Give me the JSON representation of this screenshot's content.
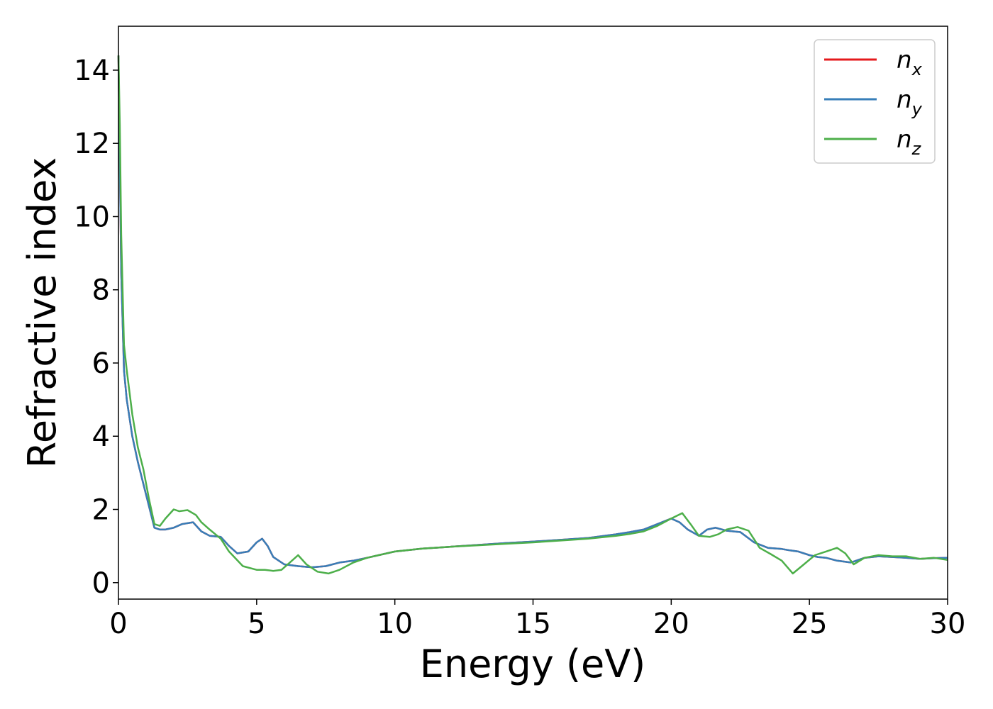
{
  "chart_data": {
    "type": "line",
    "xlabel": "Energy (eV)",
    "ylabel": "Refractive index",
    "xlim": [
      0,
      30
    ],
    "ylim": [
      -0.45,
      15.2
    ],
    "xticks": [
      0,
      5,
      10,
      15,
      20,
      25,
      30
    ],
    "yticks": [
      0,
      2,
      4,
      6,
      8,
      10,
      12,
      14
    ],
    "grid": false,
    "legend": "top-right",
    "series": [
      {
        "name": "n",
        "subscript": "x",
        "color": "#e41a1c",
        "x": [
          0,
          0.05,
          0.1,
          0.2,
          0.3,
          0.5,
          0.7,
          0.9,
          1.1,
          1.3,
          1.5,
          1.7,
          2.0,
          2.3,
          2.7,
          3.0,
          3.3,
          3.7,
          4.0,
          4.3,
          4.7,
          5.0,
          5.2,
          5.4,
          5.6,
          6.0,
          6.5,
          7.0,
          7.5,
          8.0,
          8.5,
          9.0,
          10.0,
          11.0,
          12.0,
          13.0,
          14.0,
          15.0,
          16.0,
          17.0,
          18.0,
          18.5,
          19.0,
          19.5,
          20.0,
          20.3,
          20.6,
          21.0,
          21.3,
          21.6,
          22.0,
          22.5,
          23.0,
          23.5,
          24.0,
          24.3,
          24.6,
          25.0,
          25.3,
          25.6,
          26.0,
          26.5,
          27.0,
          27.5,
          28.0,
          28.5,
          29.0,
          29.5,
          30.0
        ],
        "values": [
          14.4,
          11.5,
          8.5,
          5.8,
          5.0,
          4.0,
          3.3,
          2.7,
          2.1,
          1.5,
          1.45,
          1.45,
          1.5,
          1.6,
          1.65,
          1.4,
          1.28,
          1.25,
          1.0,
          0.8,
          0.85,
          1.1,
          1.2,
          1.0,
          0.7,
          0.5,
          0.45,
          0.42,
          0.45,
          0.55,
          0.6,
          0.68,
          0.85,
          0.93,
          0.98,
          1.03,
          1.08,
          1.12,
          1.17,
          1.22,
          1.32,
          1.38,
          1.45,
          1.6,
          1.75,
          1.65,
          1.45,
          1.28,
          1.45,
          1.5,
          1.42,
          1.38,
          1.1,
          0.95,
          0.92,
          0.88,
          0.85,
          0.75,
          0.7,
          0.68,
          0.6,
          0.55,
          0.68,
          0.72,
          0.7,
          0.68,
          0.65,
          0.67,
          0.68
        ]
      },
      {
        "name": "n",
        "subscript": "y",
        "color": "#377eb8",
        "x": [
          0,
          0.05,
          0.1,
          0.2,
          0.3,
          0.5,
          0.7,
          0.9,
          1.1,
          1.3,
          1.5,
          1.7,
          2.0,
          2.3,
          2.7,
          3.0,
          3.3,
          3.7,
          4.0,
          4.3,
          4.7,
          5.0,
          5.2,
          5.4,
          5.6,
          6.0,
          6.5,
          7.0,
          7.5,
          8.0,
          8.5,
          9.0,
          10.0,
          11.0,
          12.0,
          13.0,
          14.0,
          15.0,
          16.0,
          17.0,
          18.0,
          18.5,
          19.0,
          19.5,
          20.0,
          20.3,
          20.6,
          21.0,
          21.3,
          21.6,
          22.0,
          22.5,
          23.0,
          23.5,
          24.0,
          24.3,
          24.6,
          25.0,
          25.3,
          25.6,
          26.0,
          26.5,
          27.0,
          27.5,
          28.0,
          28.5,
          29.0,
          29.5,
          30.0
        ],
        "values": [
          14.4,
          11.5,
          8.5,
          5.8,
          5.0,
          4.0,
          3.3,
          2.7,
          2.1,
          1.5,
          1.45,
          1.45,
          1.5,
          1.6,
          1.65,
          1.4,
          1.28,
          1.25,
          1.0,
          0.8,
          0.85,
          1.1,
          1.2,
          1.0,
          0.7,
          0.5,
          0.45,
          0.42,
          0.45,
          0.55,
          0.6,
          0.68,
          0.85,
          0.93,
          0.98,
          1.03,
          1.08,
          1.12,
          1.17,
          1.22,
          1.32,
          1.38,
          1.45,
          1.6,
          1.75,
          1.65,
          1.45,
          1.28,
          1.45,
          1.5,
          1.42,
          1.38,
          1.1,
          0.95,
          0.92,
          0.88,
          0.85,
          0.75,
          0.7,
          0.68,
          0.6,
          0.55,
          0.68,
          0.72,
          0.7,
          0.68,
          0.65,
          0.67,
          0.68
        ]
      },
      {
        "name": "n",
        "subscript": "z",
        "color": "#4daf4a",
        "x": [
          0,
          0.05,
          0.1,
          0.2,
          0.3,
          0.5,
          0.7,
          0.9,
          1.1,
          1.3,
          1.5,
          1.7,
          2.0,
          2.2,
          2.5,
          2.8,
          3.0,
          3.3,
          3.7,
          4.0,
          4.5,
          5.0,
          5.3,
          5.6,
          5.9,
          6.2,
          6.5,
          6.8,
          7.2,
          7.6,
          8.0,
          8.5,
          9.0,
          10.0,
          11.0,
          12.0,
          13.0,
          14.0,
          15.0,
          16.0,
          17.0,
          18.0,
          18.5,
          19.0,
          19.5,
          20.0,
          20.4,
          20.7,
          21.0,
          21.4,
          21.7,
          22.0,
          22.4,
          22.8,
          23.2,
          23.6,
          24.0,
          24.4,
          24.8,
          25.2,
          25.6,
          26.0,
          26.3,
          26.6,
          27.0,
          27.5,
          28.0,
          28.5,
          29.0,
          29.5,
          30.0
        ],
        "values": [
          14.4,
          12.5,
          9.5,
          6.5,
          5.8,
          4.6,
          3.7,
          3.1,
          2.3,
          1.6,
          1.55,
          1.75,
          2.0,
          1.95,
          1.98,
          1.85,
          1.65,
          1.45,
          1.2,
          0.85,
          0.45,
          0.35,
          0.35,
          0.32,
          0.35,
          0.55,
          0.75,
          0.5,
          0.3,
          0.25,
          0.35,
          0.55,
          0.68,
          0.85,
          0.93,
          0.98,
          1.02,
          1.06,
          1.1,
          1.15,
          1.2,
          1.28,
          1.33,
          1.4,
          1.55,
          1.75,
          1.9,
          1.6,
          1.28,
          1.25,
          1.32,
          1.45,
          1.52,
          1.42,
          0.95,
          0.78,
          0.6,
          0.25,
          0.5,
          0.75,
          0.85,
          0.95,
          0.8,
          0.5,
          0.68,
          0.75,
          0.72,
          0.72,
          0.65,
          0.68,
          0.62
        ]
      }
    ]
  }
}
